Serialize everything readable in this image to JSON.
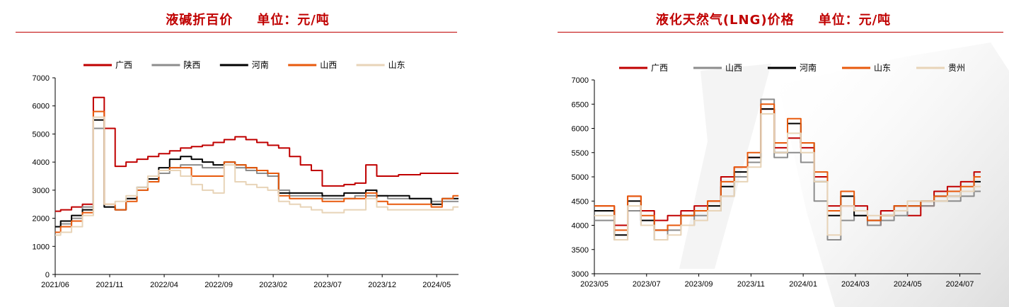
{
  "left_panel": {
    "title": "液碱折百价",
    "unit_label": "单位：元/吨"
  },
  "right_panel": {
    "title": "液化天然气(LNG)价格",
    "unit_label": "单位：元/吨"
  },
  "chart_data": [
    {
      "type": "line",
      "title": "液碱折百价",
      "ylabel": "单位：元/吨",
      "ylim": [
        0,
        7000
      ],
      "yticks": [
        0,
        1000,
        2000,
        3000,
        4000,
        5000,
        6000,
        7000
      ],
      "xticks": [
        "2021/06",
        "2021/11",
        "2022/04",
        "2022/09",
        "2023/02",
        "2023/07",
        "2023/12",
        "2024/05"
      ],
      "x": [
        "2021/06",
        "2021/07",
        "2021/08",
        "2021/09",
        "2021/10",
        "2021/11",
        "2021/12",
        "2022/01",
        "2022/02",
        "2022/03",
        "2022/04",
        "2022/05",
        "2022/06",
        "2022/07",
        "2022/08",
        "2022/09",
        "2022/10",
        "2022/11",
        "2022/12",
        "2023/01",
        "2023/02",
        "2023/03",
        "2023/04",
        "2023/05",
        "2023/06",
        "2023/07",
        "2023/08",
        "2023/09",
        "2023/10",
        "2023/11",
        "2023/12",
        "2024/01",
        "2024/02",
        "2024/03",
        "2024/04",
        "2024/05",
        "2024/06",
        "2024/07"
      ],
      "legend_position": "top",
      "series": [
        {
          "name": "广西",
          "color": "#c00000",
          "values": [
            2250,
            2300,
            2400,
            2500,
            6300,
            5200,
            3850,
            4000,
            4100,
            4200,
            4300,
            4400,
            4500,
            4550,
            4600,
            4700,
            4800,
            4900,
            4800,
            4700,
            4600,
            4500,
            4200,
            3900,
            3700,
            3150,
            3150,
            3200,
            3250,
            3900,
            3500,
            3500,
            3550,
            3550,
            3600,
            3600,
            3600,
            3600
          ]
        },
        {
          "name": "陕西",
          "color": "#8c8c8c",
          "values": [
            1700,
            1800,
            2000,
            2400,
            5200,
            2400,
            2300,
            2700,
            3000,
            3300,
            3600,
            3800,
            3900,
            3900,
            3800,
            3800,
            4000,
            3800,
            3700,
            3600,
            3500,
            3000,
            2800,
            2800,
            2800,
            2700,
            2700,
            2700,
            2800,
            2800,
            2800,
            2700,
            2700,
            2700,
            2700,
            2600,
            2600,
            2600
          ]
        },
        {
          "name": "河南",
          "color": "#000000",
          "values": [
            1700,
            1900,
            2100,
            2300,
            5500,
            2400,
            2300,
            2700,
            3100,
            3400,
            3800,
            4100,
            4200,
            4100,
            4000,
            3900,
            4000,
            3900,
            3800,
            3700,
            3600,
            2900,
            2900,
            2900,
            2900,
            2800,
            2800,
            2900,
            2900,
            3000,
            2800,
            2800,
            2800,
            2700,
            2700,
            2500,
            2700,
            2700
          ]
        },
        {
          "name": "山西",
          "color": "#e85a0d",
          "values": [
            1500,
            1700,
            1900,
            2200,
            5800,
            2500,
            2300,
            2600,
            3000,
            3300,
            3700,
            3800,
            3800,
            3500,
            3500,
            3500,
            4000,
            3900,
            3800,
            3700,
            3600,
            2800,
            2700,
            2700,
            2700,
            2600,
            2600,
            2700,
            2700,
            2900,
            2600,
            2500,
            2500,
            2500,
            2500,
            2400,
            2700,
            2800
          ]
        },
        {
          "name": "山东",
          "color": "#e8d4b8",
          "values": [
            1400,
            1500,
            1700,
            2100,
            5600,
            2500,
            2600,
            2800,
            3100,
            3500,
            3700,
            3700,
            3500,
            3200,
            3000,
            2900,
            3900,
            3300,
            3200,
            3100,
            3000,
            2600,
            2500,
            2400,
            2300,
            2200,
            2200,
            2300,
            2300,
            2700,
            2400,
            2300,
            2300,
            2300,
            2300,
            2300,
            2300,
            2400
          ]
        }
      ]
    },
    {
      "type": "line",
      "title": "液化天然气(LNG)价格",
      "ylabel": "单位：元/吨",
      "ylim": [
        3000,
        7000
      ],
      "yticks": [
        3000,
        3500,
        4000,
        4500,
        5000,
        5500,
        6000,
        6500,
        7000
      ],
      "xticks": [
        "2023/05",
        "2023/07",
        "2023/09",
        "2023/11",
        "2024/01",
        "2024/03",
        "2024/05",
        "2024/07"
      ],
      "x": [
        "2023/05/01",
        "2023/05/15",
        "2023/06/01",
        "2023/06/15",
        "2023/07/01",
        "2023/07/15",
        "2023/08/01",
        "2023/08/15",
        "2023/09/01",
        "2023/09/15",
        "2023/10/01",
        "2023/10/15",
        "2023/11/01",
        "2023/11/15",
        "2023/12/01",
        "2023/12/15",
        "2024/01/01",
        "2024/01/15",
        "2024/02/01",
        "2024/02/15",
        "2024/03/01",
        "2024/03/15",
        "2024/04/01",
        "2024/04/15",
        "2024/05/01",
        "2024/05/15",
        "2024/06/01",
        "2024/06/15",
        "2024/07/01",
        "2024/07/15"
      ],
      "legend_position": "top",
      "series": [
        {
          "name": "广西",
          "color": "#c00000",
          "values": [
            4400,
            4400,
            4000,
            4600,
            4300,
            4100,
            4200,
            4300,
            4400,
            4500,
            5000,
            5200,
            5400,
            6400,
            5600,
            5800,
            5600,
            5000,
            4400,
            4400,
            4400,
            4000,
            4300,
            4400,
            4200,
            4400,
            4700,
            4800,
            4900,
            5100
          ]
        },
        {
          "name": "山西",
          "color": "#8c8c8c",
          "values": [
            4100,
            4100,
            3700,
            4300,
            4000,
            3700,
            3900,
            4000,
            4200,
            4300,
            4600,
            5000,
            5300,
            6600,
            5400,
            5500,
            5300,
            4500,
            3700,
            4100,
            4200,
            4000,
            4100,
            4200,
            4400,
            4400,
            4500,
            4500,
            4600,
            4700
          ]
        },
        {
          "name": "河南",
          "color": "#000000",
          "values": [
            4300,
            4300,
            3800,
            4500,
            4100,
            3900,
            4000,
            4200,
            4300,
            4400,
            4800,
            5100,
            5400,
            6400,
            5500,
            6100,
            5700,
            4900,
            4200,
            4600,
            4200,
            4100,
            4200,
            4400,
            4400,
            4500,
            4600,
            4600,
            4700,
            4900
          ]
        },
        {
          "name": "山东",
          "color": "#e85a0d",
          "values": [
            4400,
            4400,
            3900,
            4600,
            4200,
            3900,
            4000,
            4200,
            4300,
            4500,
            4900,
            5200,
            5500,
            6500,
            5700,
            6200,
            5700,
            5100,
            4300,
            4700,
            4300,
            4100,
            4200,
            4400,
            4400,
            4500,
            4600,
            4700,
            4800,
            5000
          ]
        },
        {
          "name": "贵州",
          "color": "#e8d4b8",
          "values": [
            4200,
            4200,
            3700,
            4400,
            4000,
            3700,
            3800,
            4000,
            4100,
            4300,
            4600,
            4900,
            5200,
            6300,
            5500,
            5900,
            5500,
            4900,
            3800,
            4400,
            4300,
            4200,
            4200,
            4300,
            4500,
            4500,
            4500,
            4600,
            4700,
            4800
          ]
        }
      ]
    }
  ]
}
